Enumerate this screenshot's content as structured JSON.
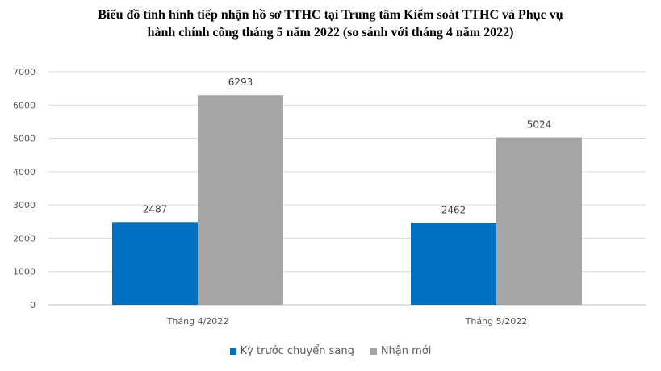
{
  "chart_data": {
    "type": "bar",
    "title_line1": "Biểu đồ tình hình tiếp nhận hồ sơ TTHC tại Trung tâm Kiểm soát TTHC và Phục vụ",
    "title_line2": "hành chính công tháng 5 năm 2022 (so sánh với tháng 4 năm 2022)",
    "categories": [
      "Tháng 4/2022",
      "Tháng 5/2022"
    ],
    "series": [
      {
        "name": "Kỳ trước chuyển sang",
        "values": [
          2487,
          2462
        ],
        "color": "#0070C0"
      },
      {
        "name": "Nhận mới",
        "values": [
          6293,
          5024
        ],
        "color": "#A5A5A5"
      }
    ],
    "ylim": [
      0,
      7000
    ],
    "yticks": [
      0,
      1000,
      2000,
      3000,
      4000,
      5000,
      6000,
      7000
    ],
    "grid": true,
    "legend_position": "bottom"
  }
}
